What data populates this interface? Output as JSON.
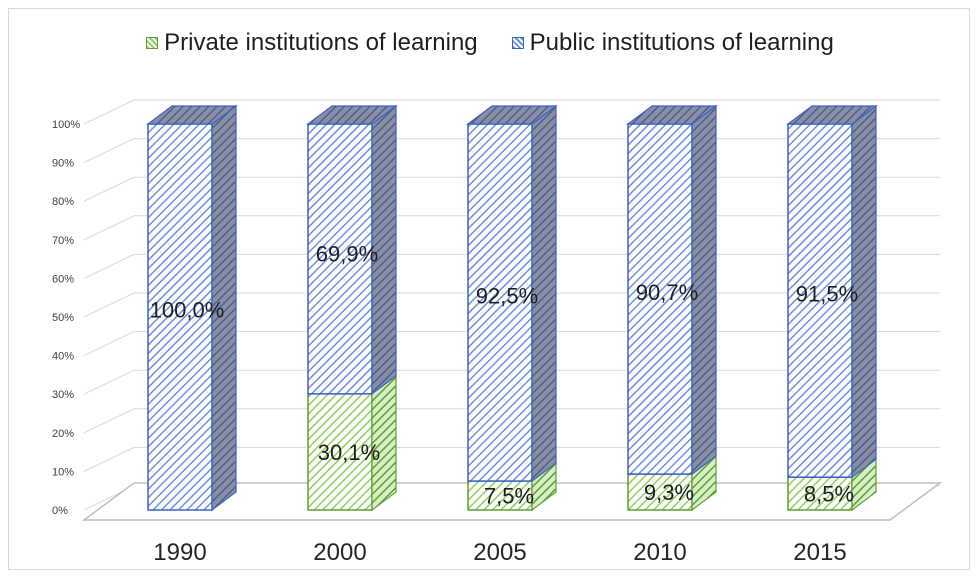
{
  "colors": {
    "private": "#8fcf5f",
    "private_edge": "#5e9f34",
    "public": "#6d8fe3",
    "public_edge": "#3964c8",
    "grid": "#d9d9d9"
  },
  "legend": {
    "private": "Private institutions of learning",
    "public": "Public institutions of learning"
  },
  "chart_data": {
    "type": "bar",
    "stacked": true,
    "title": "",
    "xlabel": "",
    "ylabel": "",
    "ylim": [
      0,
      100
    ],
    "grid": true,
    "legend_position": "top",
    "categories": [
      "1990",
      "2000",
      "2005",
      "2010",
      "2015"
    ],
    "y_ticks": [
      "0%",
      "10%",
      "20%",
      "30%",
      "40%",
      "50%",
      "60%",
      "70%",
      "80%",
      "90%",
      "100%"
    ],
    "series": [
      {
        "name": "Private institutions of learning",
        "values": [
          0,
          30.1,
          7.5,
          9.3,
          8.5
        ],
        "labels": [
          "",
          "30,1%",
          "7,5%",
          "9,3%",
          "8,5%"
        ]
      },
      {
        "name": "Public institutions of learning",
        "values": [
          100,
          69.9,
          92.5,
          90.7,
          91.5
        ],
        "labels": [
          "100,0%",
          "69,9%",
          "92,5%",
          "90,7%",
          "91,5%"
        ]
      }
    ]
  }
}
